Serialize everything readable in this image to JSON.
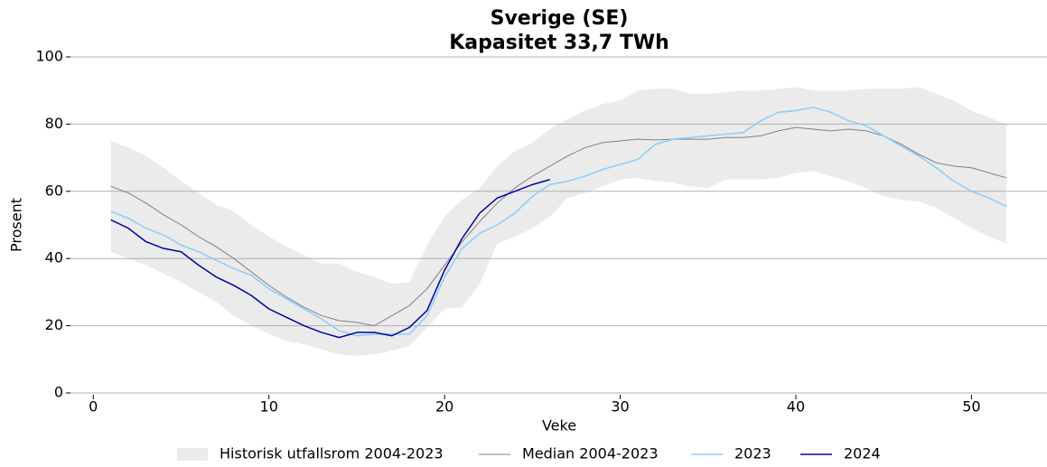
{
  "chart_data": {
    "type": "line",
    "title": "Sverige (SE)",
    "subtitle": "Kapasitet 33,7 TWh",
    "x_label": "Veke",
    "y_label": "Prosent",
    "x": [
      1,
      2,
      3,
      4,
      5,
      6,
      7,
      8,
      9,
      10,
      11,
      12,
      13,
      14,
      15,
      16,
      17,
      18,
      19,
      20,
      21,
      22,
      23,
      24,
      25,
      26,
      27,
      28,
      29,
      30,
      31,
      32,
      33,
      34,
      35,
      36,
      37,
      38,
      39,
      40,
      41,
      42,
      43,
      44,
      45,
      46,
      47,
      48,
      49,
      50,
      51,
      52
    ],
    "band": {
      "name": "Historisk utfallsrom 2004-2023",
      "color": "#ebebeb",
      "upper": [
        75,
        73,
        70.5,
        67,
        63,
        59.5,
        56,
        54,
        50,
        46.5,
        43.5,
        41,
        38.5,
        38.5,
        36,
        34.5,
        32.5,
        33,
        44,
        52.5,
        57.5,
        61,
        67.5,
        72,
        74.5,
        78.5,
        81.5,
        84,
        86,
        87,
        90,
        90.5,
        90.5,
        89,
        89,
        89.5,
        90,
        90,
        90.5,
        91,
        90,
        90,
        90,
        90.5,
        90.5,
        90.5,
        91,
        89,
        87,
        84,
        82,
        80
      ],
      "lower": [
        42,
        40,
        38,
        35.5,
        33,
        30,
        27,
        23,
        20,
        17.5,
        15.5,
        14.5,
        13,
        11.5,
        11,
        11.5,
        12.5,
        14,
        19.5,
        25,
        25.5,
        32.5,
        44.5,
        46.5,
        49,
        52.5,
        58,
        59.5,
        61.5,
        63.5,
        64,
        63,
        62.5,
        61.5,
        61,
        63.5,
        63.5,
        63.5,
        64,
        65.5,
        66,
        64.5,
        63,
        61,
        58.5,
        57.5,
        57,
        55,
        52,
        49,
        46.5,
        44.5
      ]
    },
    "series": [
      {
        "name": "Median 2004-2023",
        "color": "#808080",
        "width": 1,
        "values": [
          61.5,
          59.5,
          56.5,
          53,
          50,
          46.5,
          43.5,
          40,
          36,
          32,
          28.5,
          25.5,
          23,
          21.5,
          21,
          20,
          23,
          26,
          31,
          38,
          45,
          51,
          56.5,
          61,
          64.5,
          67.5,
          70.5,
          73,
          74.5,
          75,
          75.5,
          75.3,
          75.5,
          75.5,
          75.5,
          76,
          76,
          76.5,
          78,
          79,
          78.5,
          78,
          78.5,
          78,
          76.5,
          74,
          71,
          68.5,
          67.5,
          67,
          65.5,
          64
        ]
      },
      {
        "name": "2023",
        "color": "#87cefa",
        "width": 1.5,
        "values": [
          54,
          52,
          49,
          47,
          44,
          42,
          39.5,
          37,
          35,
          31,
          28,
          25,
          22,
          18.5,
          17,
          17.5,
          17.5,
          17.5,
          23,
          34.5,
          43,
          47.5,
          50,
          53.5,
          58.5,
          62,
          63,
          64.5,
          66.5,
          68,
          69.5,
          74,
          75.5,
          76,
          76.5,
          77,
          77.5,
          81,
          83.5,
          84,
          85,
          83.5,
          81,
          79.5,
          76.5,
          73.5,
          70.5,
          67,
          63,
          60,
          58,
          55.5
        ]
      },
      {
        "name": "2024",
        "color": "#0000b0",
        "width": 1.5,
        "values": [
          51.5,
          49,
          45,
          43,
          42,
          38,
          34.5,
          32,
          29,
          25,
          22.5,
          20,
          18,
          16.5,
          18,
          18,
          17,
          19.5,
          24.5,
          36.5,
          46,
          53.5,
          58,
          60,
          62,
          63.5,
          null,
          null,
          null,
          null,
          null,
          null,
          null,
          null,
          null,
          null,
          null,
          null,
          null,
          null,
          null,
          null,
          null,
          null,
          null,
          null,
          null,
          null,
          null,
          null,
          null,
          null
        ]
      }
    ],
    "xlim": [
      -1.3,
      54.3
    ],
    "xticks": [
      0,
      10,
      20,
      30,
      40,
      50
    ],
    "ylim": [
      0,
      100
    ],
    "yticks": [
      0,
      20,
      40,
      60,
      80,
      100
    ],
    "grid": true,
    "legend": "bottom"
  }
}
